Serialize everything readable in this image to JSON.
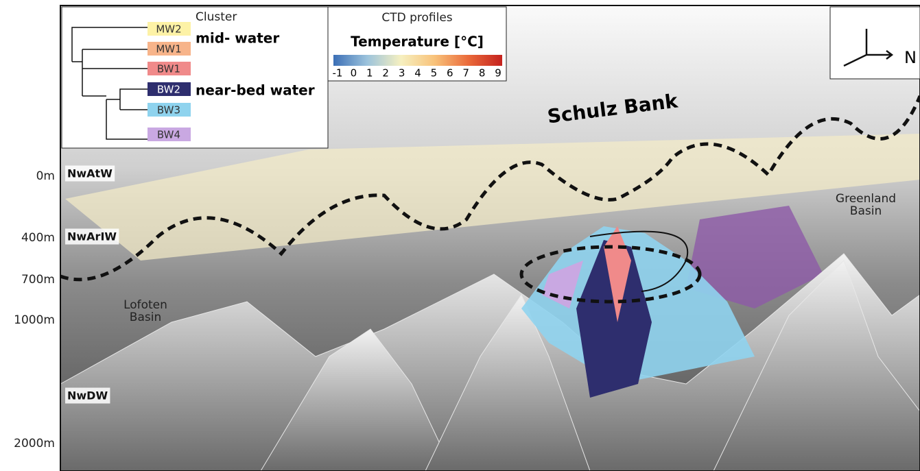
{
  "depth_labels": [
    "0m",
    "400m",
    "700m",
    "1000m",
    "2000m"
  ],
  "water_masses": [
    "NwAtW",
    "NwArIW",
    "NwDW"
  ],
  "legend": {
    "title": "Cluster",
    "groups": [
      "mid- water",
      "near-bed water"
    ],
    "clusters": [
      {
        "label": "MW2",
        "color": "#fdf2a6"
      },
      {
        "label": "MW1",
        "color": "#f7b48a"
      },
      {
        "label": "BW1",
        "color": "#f08a8a"
      },
      {
        "label": "BW2",
        "color": "#2e2e6e"
      },
      {
        "label": "BW3",
        "color": "#8fd3ee"
      },
      {
        "label": "BW4",
        "color": "#c9a8e2"
      }
    ]
  },
  "colorbar": {
    "title": "CTD profiles",
    "label": "Temperature [°C]",
    "ticks": [
      -1,
      0,
      1,
      2,
      3,
      4,
      5,
      6,
      7,
      8,
      9
    ]
  },
  "compass": "N",
  "site": "Schulz Bank",
  "basins": [
    {
      "lines": [
        "Lofoten",
        "Basin"
      ]
    },
    {
      "lines": [
        "Greenland",
        "Basin"
      ]
    }
  ]
}
